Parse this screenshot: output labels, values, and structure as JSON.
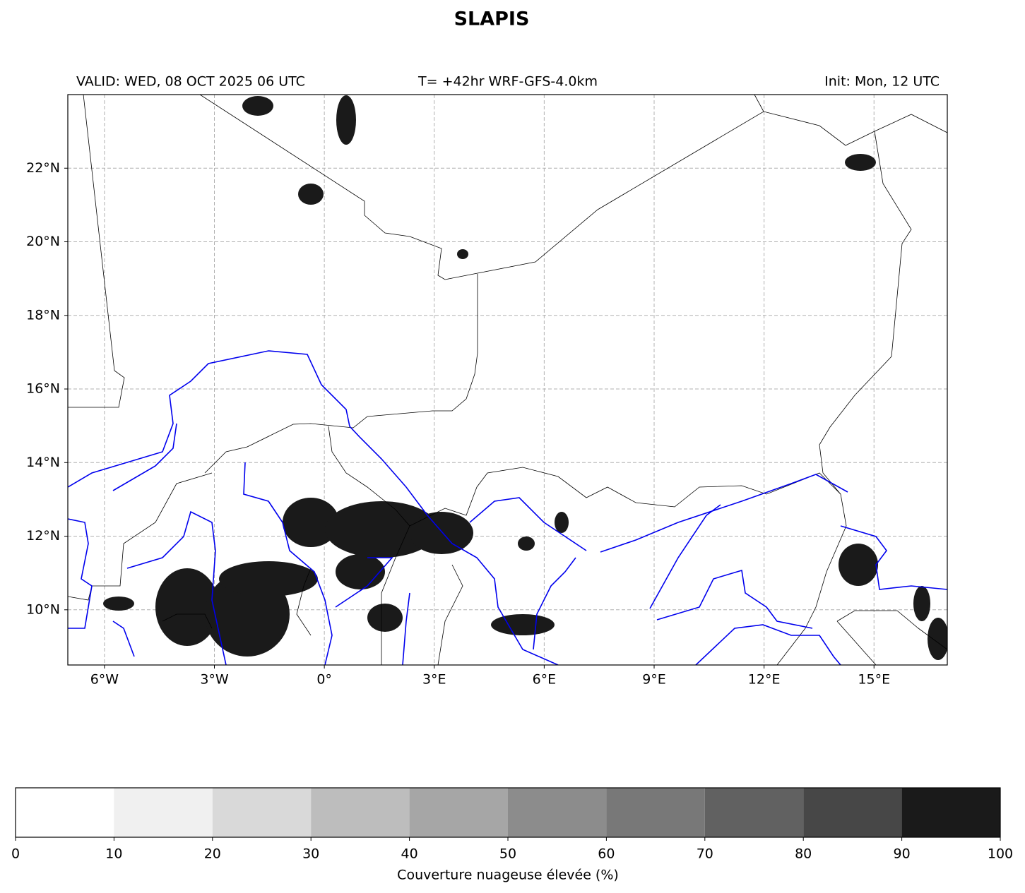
{
  "title": "SLAPIS",
  "valid": "VALID: WED, 08 OCT 2025 06 UTC",
  "run": "T= +42hr WRF-GFS-4.0km",
  "init": "Init: Mon, 12 UTC",
  "map": {
    "xlim": [
      -7,
      17
    ],
    "ylim": [
      8.5,
      24
    ],
    "grid": true,
    "xticks": [
      {
        "value": -6,
        "label": "6°W"
      },
      {
        "value": -3,
        "label": "3°W"
      },
      {
        "value": 0,
        "label": "0°"
      },
      {
        "value": 3,
        "label": "3°E"
      },
      {
        "value": 6,
        "label": "6°E"
      },
      {
        "value": 9,
        "label": "9°E"
      },
      {
        "value": 12,
        "label": "12°E"
      },
      {
        "value": 15,
        "label": "15°E"
      }
    ],
    "yticks": [
      {
        "value": 10,
        "label": "10°N"
      },
      {
        "value": 12,
        "label": "12°N"
      },
      {
        "value": 14,
        "label": "14°N"
      },
      {
        "value": 16,
        "label": "16°N"
      },
      {
        "value": 18,
        "label": "18°N"
      },
      {
        "value": 20,
        "label": "20°N"
      },
      {
        "value": 22,
        "label": "22°N"
      }
    ]
  },
  "colorbar": {
    "label": "Couverture nuageuse élevée (%)",
    "levels": [
      0,
      10,
      20,
      30,
      40,
      50,
      60,
      70,
      80,
      90,
      100
    ],
    "colors": [
      "#ffffff",
      "#f0f0f0",
      "#d9d9d9",
      "#bdbdbd",
      "#a6a6a6",
      "#8c8c8c",
      "#787878",
      "#616161",
      "#474747",
      "#1a1a1a"
    ]
  }
}
